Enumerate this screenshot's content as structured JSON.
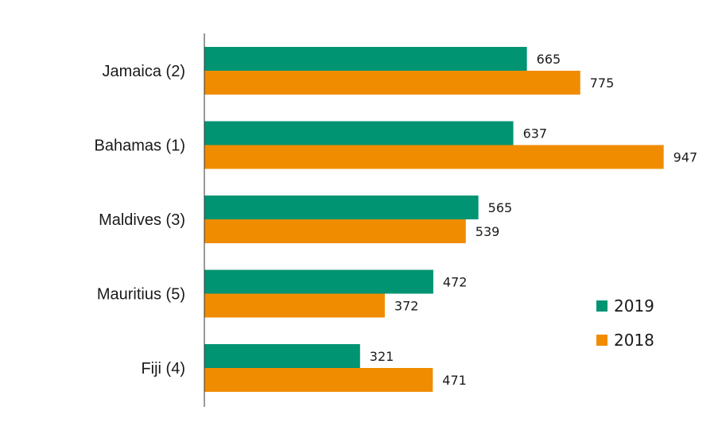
{
  "chart_data": {
    "type": "bar",
    "orientation": "horizontal",
    "title": "",
    "xlabel": "",
    "ylabel": "",
    "xlim": [
      0,
      1000
    ],
    "grid": false,
    "legend_position": "right",
    "categories": [
      "Jamaica (2)",
      "Bahamas (1)",
      "Maldives (3)",
      "Mauritius (5)",
      "Fiji (4)"
    ],
    "series": [
      {
        "name": "2019",
        "color": "#009473",
        "values": [
          665,
          637,
          565,
          472,
          321
        ]
      },
      {
        "name": "2018",
        "color": "#F08C00",
        "values": [
          775,
          947,
          539,
          372,
          471
        ]
      }
    ]
  }
}
